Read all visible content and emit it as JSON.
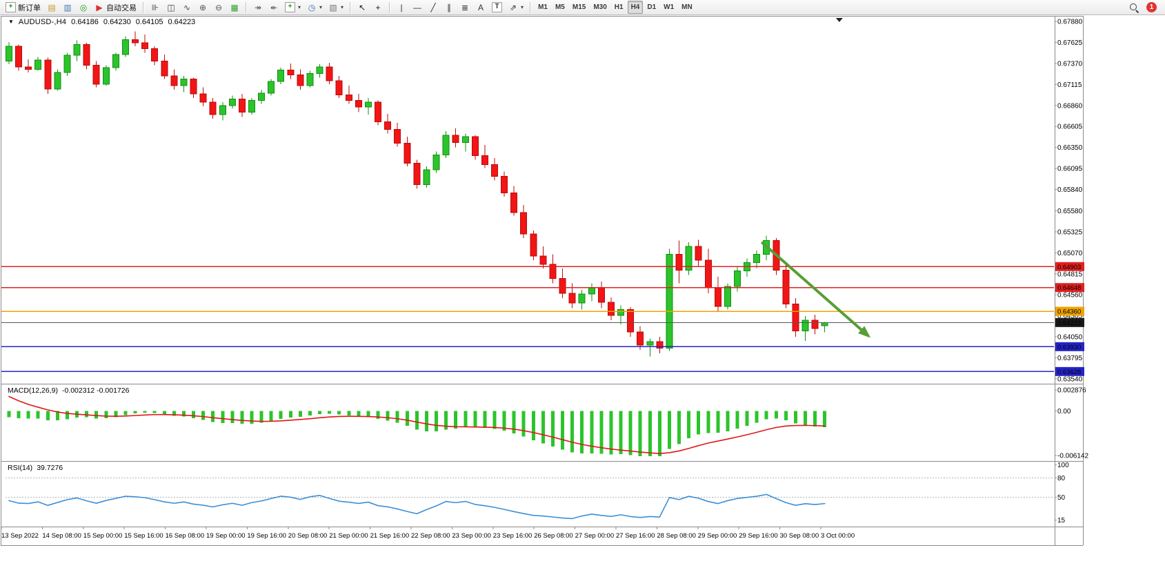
{
  "toolbar": {
    "items": [
      {
        "name": "new-order-button",
        "icon": "new-order-icon",
        "glyph": "+",
        "color": "#169c16",
        "boxed": true,
        "label": "新订单"
      },
      {
        "name": "charts-button",
        "icon": "chart-window-icon",
        "glyph": "▤",
        "color": "#c09a30"
      },
      {
        "name": "market-watch-button",
        "icon": "market-watch-icon",
        "glyph": "▥",
        "color": "#4878b8"
      },
      {
        "name": "signals-button",
        "icon": "signals-icon",
        "glyph": "◎",
        "color": "#1f9e1f"
      },
      {
        "name": "autotrading-button",
        "icon": "autotrading-icon",
        "glyph": "▶",
        "color": "#d83030",
        "label": "自动交易"
      },
      {
        "divider": true
      },
      {
        "name": "ohlc-bars-button",
        "icon": "ohlc-bars-icon",
        "glyph": "⊪",
        "color": "#444444"
      },
      {
        "name": "candlesticks-button",
        "icon": "candlesticks-icon",
        "glyph": "◫",
        "color": "#444444"
      },
      {
        "name": "line-chart-button",
        "icon": "line-chart-icon",
        "glyph": "∿",
        "color": "#444444"
      },
      {
        "name": "zoom-in-button",
        "icon": "zoom-in-icon",
        "glyph": "⊕",
        "color": "#555555"
      },
      {
        "name": "zoom-out-button",
        "icon": "zoom-out-icon",
        "glyph": "⊖",
        "color": "#555555"
      },
      {
        "name": "tile-windows-button",
        "icon": "tile-windows-icon",
        "glyph": "▦",
        "color": "#2f9e2f"
      },
      {
        "divider": true
      },
      {
        "name": "auto-scroll-button",
        "icon": "auto-scroll-icon",
        "glyph": "↠",
        "color": "#555555"
      },
      {
        "name": "chart-shift-button",
        "icon": "chart-shift-icon",
        "glyph": "↞",
        "color": "#555555"
      },
      {
        "name": "indicators-button",
        "icon": "indicators-icon",
        "glyph": "+",
        "color": "#169c16",
        "boxed": true,
        "dropdown": true
      },
      {
        "name": "periods-button",
        "icon": "periods-icon",
        "glyph": "◷",
        "color": "#3a6fb8",
        "dropdown": true
      },
      {
        "name": "templates-button",
        "icon": "templates-icon",
        "glyph": "▧",
        "color": "#777777",
        "dropdown": true
      },
      {
        "divider": true
      },
      {
        "name": "cursor-button",
        "icon": "cursor-icon",
        "glyph": "↖",
        "color": "#1a1a1a"
      },
      {
        "name": "crosshair-button",
        "icon": "crosshair-icon",
        "glyph": "+",
        "color": "#1a1a1a"
      },
      {
        "divider": true
      },
      {
        "name": "vertical-line-button",
        "icon": "vertical-line-icon",
        "glyph": "|",
        "color": "#333333"
      },
      {
        "name": "horizontal-line-button",
        "icon": "horizontal-line-icon",
        "glyph": "—",
        "color": "#333333"
      },
      {
        "name": "trendline-button",
        "icon": "trendline-icon",
        "glyph": "╱",
        "color": "#333333"
      },
      {
        "name": "channel-button",
        "icon": "channel-icon",
        "glyph": "∥",
        "color": "#333333"
      },
      {
        "name": "fibonacci-button",
        "icon": "fibonacci-icon",
        "glyph": "≣",
        "color": "#333333"
      },
      {
        "name": "text-button",
        "icon": "text-icon",
        "glyph": "A",
        "color": "#333333"
      },
      {
        "name": "text-label-button",
        "icon": "text-label-icon",
        "glyph": "T",
        "color": "#333333",
        "boxed": true
      },
      {
        "name": "shapes-button",
        "icon": "arrows-shapes-icon",
        "glyph": "⇗",
        "color": "#333333",
        "dropdown": true
      },
      {
        "divider": true
      },
      {
        "name": "timeframe-m1-button",
        "tf": true,
        "label": "M1"
      },
      {
        "name": "timeframe-m5-button",
        "tf": true,
        "label": "M5"
      },
      {
        "name": "timeframe-m15-button",
        "tf": true,
        "label": "M15"
      },
      {
        "name": "timeframe-m30-button",
        "tf": true,
        "label": "M30"
      },
      {
        "name": "timeframe-h1-button",
        "tf": true,
        "label": "H1"
      },
      {
        "name": "timeframe-h4-button",
        "tf": true,
        "label": "H4",
        "active": true
      },
      {
        "name": "timeframe-d1-button",
        "tf": true,
        "label": "D1"
      },
      {
        "name": "timeframe-w1-button",
        "tf": true,
        "label": "W1"
      },
      {
        "name": "timeframe-mn-button",
        "tf": true,
        "label": "MN"
      }
    ],
    "right": {
      "badge_count": "1"
    }
  },
  "chart_data": {
    "type": "candlestick",
    "title": {
      "expand_glyph": "▼",
      "symbol": "AUDUSD-,H4",
      "open": "0.64186",
      "high": "0.64230",
      "low": "0.64105",
      "close": "0.64223"
    },
    "price_axis": {
      "min": 0.6348,
      "max": 0.6794,
      "labels": [
        "0.67880",
        "0.67625",
        "0.67370",
        "0.67115",
        "0.66860",
        "0.66605",
        "0.66350",
        "0.66095",
        "0.65840",
        "0.65580",
        "0.65325",
        "0.65070",
        "0.64815",
        "0.64560",
        "0.64305",
        "0.64050",
        "0.63795",
        "0.63540"
      ]
    },
    "time_axis": {
      "labels": [
        "13 Sep 2022",
        "14 Sep 08:00",
        "15 Sep 00:00",
        "15 Sep 16:00",
        "16 Sep 08:00",
        "19 Sep 00:00",
        "19 Sep 16:00",
        "20 Sep 08:00",
        "21 Sep 00:00",
        "21 Sep 16:00",
        "22 Sep 08:00",
        "23 Sep 00:00",
        "23 Sep 16:00",
        "26 Sep 08:00",
        "27 Sep 00:00",
        "27 Sep 16:00",
        "28 Sep 08:00",
        "29 Sep 00:00",
        "29 Sep 16:00",
        "30 Sep 08:00",
        "3 Oct 00:00"
      ]
    },
    "candles": [
      [
        0.674,
        0.6763,
        0.6736,
        0.6758
      ],
      [
        0.6758,
        0.676,
        0.6728,
        0.6733
      ],
      [
        0.6733,
        0.6742,
        0.6726,
        0.673
      ],
      [
        0.673,
        0.6745,
        0.6728,
        0.6741
      ],
      [
        0.6741,
        0.6744,
        0.67,
        0.6706
      ],
      [
        0.6706,
        0.673,
        0.6704,
        0.6726
      ],
      [
        0.6726,
        0.675,
        0.6722,
        0.6747
      ],
      [
        0.6747,
        0.6765,
        0.674,
        0.676
      ],
      [
        0.676,
        0.6762,
        0.673,
        0.6735
      ],
      [
        0.6735,
        0.674,
        0.6708,
        0.6712
      ],
      [
        0.6712,
        0.6735,
        0.671,
        0.6732
      ],
      [
        0.6732,
        0.675,
        0.6728,
        0.6748
      ],
      [
        0.6748,
        0.677,
        0.6745,
        0.6766
      ],
      [
        0.6766,
        0.6776,
        0.6758,
        0.6762
      ],
      [
        0.6762,
        0.6772,
        0.675,
        0.6755
      ],
      [
        0.6755,
        0.6758,
        0.6735,
        0.674
      ],
      [
        0.674,
        0.6748,
        0.6718,
        0.6722
      ],
      [
        0.6722,
        0.673,
        0.6705,
        0.671
      ],
      [
        0.671,
        0.6722,
        0.6702,
        0.6718
      ],
      [
        0.6718,
        0.672,
        0.6695,
        0.67
      ],
      [
        0.67,
        0.6708,
        0.6685,
        0.669
      ],
      [
        0.669,
        0.6695,
        0.667,
        0.6675
      ],
      [
        0.6675,
        0.669,
        0.6668,
        0.6686
      ],
      [
        0.6686,
        0.6698,
        0.6682,
        0.6694
      ],
      [
        0.6694,
        0.67,
        0.6672,
        0.6678
      ],
      [
        0.6678,
        0.6695,
        0.6675,
        0.6692
      ],
      [
        0.6692,
        0.6705,
        0.6688,
        0.6701
      ],
      [
        0.6701,
        0.6718,
        0.6698,
        0.6715
      ],
      [
        0.6715,
        0.6732,
        0.6712,
        0.6729
      ],
      [
        0.6729,
        0.6737,
        0.6718,
        0.6723
      ],
      [
        0.6723,
        0.673,
        0.6705,
        0.671
      ],
      [
        0.671,
        0.6728,
        0.6708,
        0.6725
      ],
      [
        0.6725,
        0.6736,
        0.672,
        0.6733
      ],
      [
        0.6733,
        0.6738,
        0.6712,
        0.6716
      ],
      [
        0.6716,
        0.6722,
        0.6695,
        0.6699
      ],
      [
        0.6699,
        0.671,
        0.6688,
        0.6692
      ],
      [
        0.6692,
        0.67,
        0.6678,
        0.6684
      ],
      [
        0.6684,
        0.6695,
        0.6675,
        0.669
      ],
      [
        0.669,
        0.6692,
        0.6662,
        0.6666
      ],
      [
        0.6666,
        0.6676,
        0.6652,
        0.6657
      ],
      [
        0.6657,
        0.6665,
        0.6636,
        0.664
      ],
      [
        0.664,
        0.6648,
        0.6612,
        0.6616
      ],
      [
        0.6616,
        0.662,
        0.6585,
        0.659
      ],
      [
        0.659,
        0.6612,
        0.6586,
        0.6608
      ],
      [
        0.6608,
        0.663,
        0.6604,
        0.6626
      ],
      [
        0.6626,
        0.6655,
        0.6622,
        0.665
      ],
      [
        0.665,
        0.6658,
        0.6635,
        0.6641
      ],
      [
        0.6641,
        0.6652,
        0.663,
        0.6648
      ],
      [
        0.6648,
        0.665,
        0.662,
        0.6625
      ],
      [
        0.6625,
        0.6638,
        0.661,
        0.6614
      ],
      [
        0.6614,
        0.6622,
        0.6595,
        0.66
      ],
      [
        0.66,
        0.6606,
        0.6575,
        0.658
      ],
      [
        0.658,
        0.6588,
        0.6552,
        0.6556
      ],
      [
        0.6556,
        0.6565,
        0.6525,
        0.653
      ],
      [
        0.653,
        0.6534,
        0.6498,
        0.6503
      ],
      [
        0.6503,
        0.6515,
        0.6488,
        0.6493
      ],
      [
        0.6493,
        0.6505,
        0.647,
        0.6476
      ],
      [
        0.6476,
        0.6488,
        0.6452,
        0.6458
      ],
      [
        0.6458,
        0.647,
        0.644,
        0.6446
      ],
      [
        0.6446,
        0.6462,
        0.6438,
        0.6457
      ],
      [
        0.6457,
        0.647,
        0.6448,
        0.6465
      ],
      [
        0.6465,
        0.6472,
        0.644,
        0.6447
      ],
      [
        0.6447,
        0.6453,
        0.6425,
        0.6431
      ],
      [
        0.6431,
        0.6443,
        0.642,
        0.6438
      ],
      [
        0.6438,
        0.6441,
        0.6405,
        0.6411
      ],
      [
        0.6411,
        0.6418,
        0.6389,
        0.6395
      ],
      [
        0.6395,
        0.6403,
        0.6381,
        0.6399
      ],
      [
        0.6399,
        0.6405,
        0.6385,
        0.6391
      ],
      [
        0.6391,
        0.6512,
        0.6388,
        0.6505
      ],
      [
        0.6505,
        0.6522,
        0.647,
        0.6486
      ],
      [
        0.6486,
        0.652,
        0.648,
        0.6515
      ],
      [
        0.6515,
        0.6523,
        0.649,
        0.6498
      ],
      [
        0.6498,
        0.6512,
        0.6458,
        0.6465
      ],
      [
        0.6465,
        0.6478,
        0.6435,
        0.6442
      ],
      [
        0.6442,
        0.647,
        0.6438,
        0.6466
      ],
      [
        0.6466,
        0.649,
        0.646,
        0.6485
      ],
      [
        0.6485,
        0.65,
        0.6478,
        0.6495
      ],
      [
        0.6495,
        0.651,
        0.6488,
        0.6505
      ],
      [
        0.6505,
        0.6528,
        0.6498,
        0.6522
      ],
      [
        0.6522,
        0.6525,
        0.648,
        0.6486
      ],
      [
        0.6486,
        0.6492,
        0.644,
        0.6445
      ],
      [
        0.6445,
        0.6452,
        0.6405,
        0.6412
      ],
      [
        0.6412,
        0.643,
        0.64,
        0.6425
      ],
      [
        0.6425,
        0.6432,
        0.6408,
        0.6415
      ],
      [
        0.64186,
        0.6423,
        0.64105,
        0.64223
      ]
    ],
    "objects": {
      "hlines": [
        {
          "price": 0.64903,
          "label": "0.64903",
          "color": "#e02020"
        },
        {
          "price": 0.64648,
          "label": "0.64648",
          "color": "#e02020"
        },
        {
          "price": 0.6436,
          "label": "0.64360",
          "color": "#efa300"
        },
        {
          "price": 0.6393,
          "label": "0.63930",
          "color": "#2424c8"
        },
        {
          "price": 0.63628,
          "label": "0.63628",
          "color": "#2424c8"
        }
      ],
      "bid_line": {
        "price": 0.64223,
        "label": "0.64223",
        "color": "#1a1a1a"
      },
      "trend_arrow": {
        "from_bar": 77.5,
        "from_price": 0.652,
        "to_bar": 88.5,
        "to_price": 0.6406,
        "color": "#569e35"
      },
      "shift_marker_bar": 85.5
    },
    "indicators": {
      "macd": {
        "label": "MACD(12,26,9)",
        "display": "-0.002312 -0.001726",
        "fast": 12,
        "slow": 26,
        "signal": 9,
        "scale": {
          "vmax": 0.00365,
          "vmin": -0.0069,
          "labels": [
            {
              "v": 0.002876,
              "t": "0.002876"
            },
            {
              "v": 0,
              "t": "0.00"
            },
            {
              "v": -0.006142,
              "t": "-0.006142"
            }
          ]
        }
      },
      "rsi": {
        "label": "RSI(14)",
        "display": "39.7276",
        "period": 14,
        "scale": {
          "vmax": 105,
          "vmin": 5,
          "labels": [
            {
              "v": 100,
              "t": "100"
            },
            {
              "v": 80,
              "t": "80"
            },
            {
              "v": 50,
              "t": "50"
            },
            {
              "v": 15,
              "t": "15"
            }
          ],
          "levels": [
            80,
            50
          ]
        }
      }
    },
    "colors": {
      "bull": "#2cc42c",
      "bull_border": "#0f8f0f",
      "bear": "#f21515",
      "bear_border": "#bb0a0a",
      "macd_hist": "#2cc42c",
      "macd_signal": "#e01616",
      "rsi_line": "#3b8fd8",
      "frame": "#8a8a8a",
      "grid": "#b4b4b4",
      "text": "#000000"
    }
  }
}
